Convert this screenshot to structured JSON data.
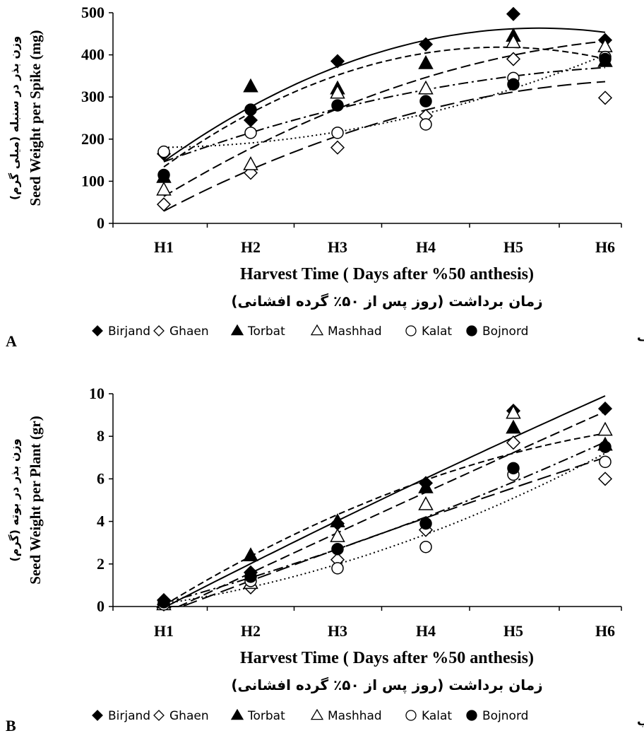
{
  "chart_data": [
    {
      "type": "scatter",
      "panel_label": "A",
      "panel_label_fa": "الف",
      "xlabel": "Harvest Time ( Days after %50 anthesis)",
      "xlabel_fa": "زمان برداشت (روز پس از ۵۰٪ گرده افشانی)",
      "ylabel": "Seed Weight per Spike (mg)",
      "ylabel_fa": "وزن بذر در سنبله (میلی گرم)",
      "categories": [
        "H1",
        "H2",
        "H3",
        "H4",
        "H5",
        "H6"
      ],
      "ylim": [
        0,
        500
      ],
      "yticks": [
        "0",
        "100",
        "200",
        "300",
        "400",
        "500"
      ],
      "legend_position": "bottom",
      "series": [
        {
          "name": "Birjand",
          "marker": "diamond-filled",
          "trend": "solid",
          "values": [
            165,
            245,
            385,
            425,
            497,
            435
          ]
        },
        {
          "name": "Ghaen",
          "marker": "diamond-open",
          "trend": "long-dash",
          "values": [
            45,
            120,
            180,
            255,
            390,
            298
          ]
        },
        {
          "name": "Torbat",
          "marker": "triangle-filled",
          "trend": "short-dash",
          "values": [
            110,
            325,
            320,
            380,
            445,
            385
          ]
        },
        {
          "name": "Mashhad",
          "marker": "triangle-open",
          "trend": "dash",
          "values": [
            80,
            140,
            310,
            320,
            430,
            420
          ]
        },
        {
          "name": "Kalat",
          "marker": "circle-open",
          "trend": "dotted",
          "values": [
            170,
            215,
            215,
            235,
            345,
            395
          ]
        },
        {
          "name": "Bojnord",
          "marker": "circle-filled",
          "trend": "dash-dot",
          "values": [
            115,
            270,
            280,
            290,
            330,
            390
          ]
        }
      ]
    },
    {
      "type": "scatter",
      "panel_label": "B",
      "panel_label_fa": "ب",
      "xlabel": "Harvest Time ( Days after %50 anthesis)",
      "xlabel_fa": "زمان برداشت (روز پس از ۵۰٪ گرده افشانی)",
      "ylabel": "Seed Weight per Plant (gr)",
      "ylabel_fa": "وزن بذر در بوته (گرم)",
      "categories": [
        "H1",
        "H2",
        "H3",
        "H4",
        "H5",
        "H6"
      ],
      "ylim": [
        0,
        10
      ],
      "yticks": [
        "0",
        "2",
        "4",
        "6",
        "8",
        "10"
      ],
      "legend_position": "bottom",
      "series": [
        {
          "name": "Birjand",
          "marker": "diamond-filled",
          "trend": "solid",
          "values": [
            0.3,
            1.6,
            3.9,
            5.8,
            9.2,
            9.3
          ]
        },
        {
          "name": "Ghaen",
          "marker": "diamond-open",
          "trend": "long-dash",
          "values": [
            0.1,
            0.9,
            2.2,
            3.6,
            7.7,
            6.0
          ]
        },
        {
          "name": "Torbat",
          "marker": "triangle-filled",
          "trend": "short-dash",
          "values": [
            0.2,
            2.4,
            4.0,
            5.6,
            8.4,
            7.6
          ]
        },
        {
          "name": "Mashhad",
          "marker": "triangle-open",
          "trend": "dash",
          "values": [
            0.1,
            1.1,
            3.3,
            4.8,
            9.1,
            8.3
          ]
        },
        {
          "name": "Kalat",
          "marker": "circle-open",
          "trend": "dotted",
          "values": [
            0.1,
            1.2,
            1.8,
            2.8,
            6.2,
            6.8
          ]
        },
        {
          "name": "Bojnord",
          "marker": "circle-filled",
          "trend": "dash-dot",
          "values": [
            0.2,
            1.4,
            2.7,
            3.9,
            6.5,
            7.5
          ]
        }
      ]
    }
  ]
}
